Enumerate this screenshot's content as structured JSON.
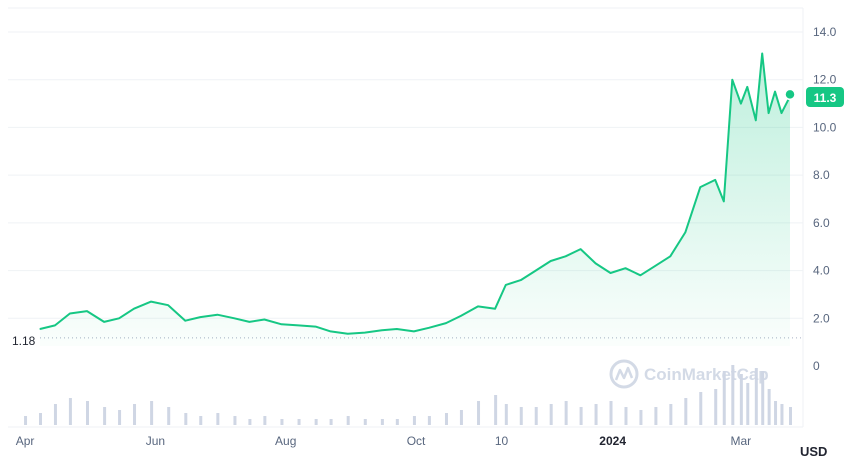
{
  "chart_data": {
    "type": "area",
    "currency": "USD",
    "watermark": "CoinMarketCap",
    "ylim": [
      0,
      14
    ],
    "y_ticks": [
      "14.0",
      "12.0",
      "10.0",
      "8.0",
      "6.0",
      "4.0",
      "2.0",
      "0"
    ],
    "x_ticks": [
      {
        "label": "Apr",
        "date": "2023-04-01"
      },
      {
        "label": "Jun",
        "date": "2023-06-01"
      },
      {
        "label": "Aug",
        "date": "2023-08-01"
      },
      {
        "label": "Oct",
        "date": "2023-10-01"
      },
      {
        "label": "10",
        "date": "2023-11-10"
      },
      {
        "label": "2024",
        "date": "2024-01-01",
        "bold": true
      },
      {
        "label": "Mar",
        "date": "2024-03-01"
      }
    ],
    "start_value_label": "1.18",
    "current_value_label": "11.3",
    "line_color": "#16c784",
    "series": {
      "x": [
        "2023-04-08",
        "2023-04-15",
        "2023-04-22",
        "2023-04-30",
        "2023-05-08",
        "2023-05-15",
        "2023-05-22",
        "2023-05-30",
        "2023-06-07",
        "2023-06-15",
        "2023-06-22",
        "2023-06-30",
        "2023-07-08",
        "2023-07-15",
        "2023-07-22",
        "2023-07-30",
        "2023-08-07",
        "2023-08-15",
        "2023-08-22",
        "2023-08-30",
        "2023-09-07",
        "2023-09-15",
        "2023-09-22",
        "2023-09-30",
        "2023-10-07",
        "2023-10-15",
        "2023-10-22",
        "2023-10-30",
        "2023-11-07",
        "2023-11-12",
        "2023-11-19",
        "2023-11-26",
        "2023-12-03",
        "2023-12-10",
        "2023-12-17",
        "2023-12-24",
        "2023-12-31",
        "2024-01-07",
        "2024-01-14",
        "2024-01-21",
        "2024-01-28",
        "2024-02-04",
        "2024-02-11",
        "2024-02-18",
        "2024-02-22",
        "2024-02-26",
        "2024-03-01",
        "2024-03-04",
        "2024-03-08",
        "2024-03-11",
        "2024-03-14",
        "2024-03-17",
        "2024-03-20",
        "2024-03-24"
      ],
      "y": [
        1.55,
        1.7,
        2.2,
        2.3,
        1.85,
        2.0,
        2.4,
        2.7,
        2.55,
        1.9,
        2.05,
        2.15,
        2.0,
        1.85,
        1.95,
        1.75,
        1.7,
        1.65,
        1.45,
        1.35,
        1.4,
        1.5,
        1.55,
        1.45,
        1.6,
        1.8,
        2.1,
        2.5,
        2.4,
        3.4,
        3.6,
        4.0,
        4.4,
        4.6,
        4.9,
        4.3,
        3.9,
        4.1,
        3.8,
        4.2,
        4.6,
        5.6,
        7.5,
        7.8,
        6.9,
        12.0,
        11.0,
        11.7,
        10.3,
        13.1,
        10.6,
        11.5,
        10.6,
        11.3
      ]
    },
    "volume": {
      "x": [
        "2023-04-01",
        "2023-04-08",
        "2023-04-15",
        "2023-04-22",
        "2023-04-30",
        "2023-05-08",
        "2023-05-15",
        "2023-05-22",
        "2023-05-30",
        "2023-06-07",
        "2023-06-15",
        "2023-06-22",
        "2023-06-30",
        "2023-07-08",
        "2023-07-15",
        "2023-07-22",
        "2023-07-30",
        "2023-08-07",
        "2023-08-15",
        "2023-08-22",
        "2023-08-30",
        "2023-09-07",
        "2023-09-15",
        "2023-09-22",
        "2023-09-30",
        "2023-10-07",
        "2023-10-15",
        "2023-10-22",
        "2023-10-30",
        "2023-11-07",
        "2023-11-12",
        "2023-11-19",
        "2023-11-26",
        "2023-12-03",
        "2023-12-10",
        "2023-12-17",
        "2023-12-24",
        "2023-12-31",
        "2024-01-07",
        "2024-01-14",
        "2024-01-21",
        "2024-01-28",
        "2024-02-04",
        "2024-02-11",
        "2024-02-18",
        "2024-02-22",
        "2024-02-26",
        "2024-03-01",
        "2024-03-04",
        "2024-03-08",
        "2024-03-11",
        "2024-03-14",
        "2024-03-17",
        "2024-03-20",
        "2024-03-24"
      ],
      "y": [
        0.15,
        0.2,
        0.35,
        0.45,
        0.4,
        0.3,
        0.25,
        0.35,
        0.4,
        0.3,
        0.2,
        0.15,
        0.2,
        0.15,
        0.1,
        0.15,
        0.1,
        0.1,
        0.1,
        0.1,
        0.15,
        0.1,
        0.1,
        0.1,
        0.15,
        0.15,
        0.2,
        0.25,
        0.4,
        0.5,
        0.35,
        0.3,
        0.3,
        0.35,
        0.4,
        0.3,
        0.35,
        0.4,
        0.3,
        0.25,
        0.3,
        0.35,
        0.45,
        0.55,
        0.6,
        0.9,
        1.0,
        0.85,
        0.7,
        0.95,
        0.9,
        0.6,
        0.4,
        0.35,
        0.3
      ]
    }
  }
}
